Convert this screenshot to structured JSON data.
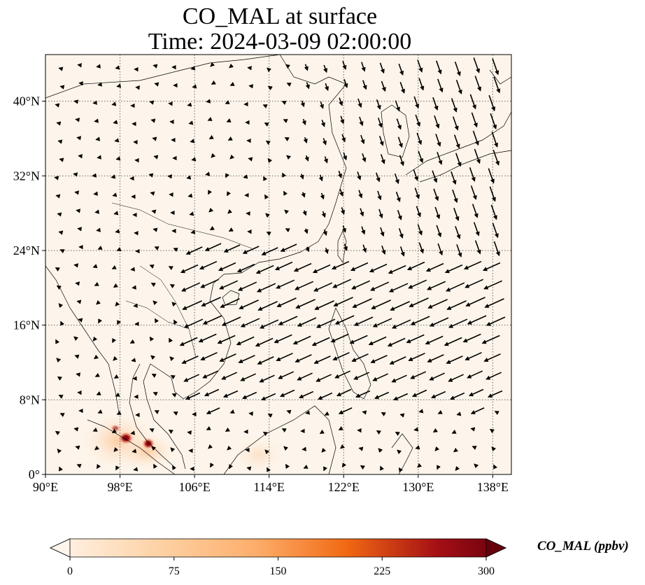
{
  "title": {
    "line1": "CO_MAL at surface",
    "line2": "Time: 2024-03-09 02:00:00"
  },
  "colorbar": {
    "label": "CO_MAL (ppbv)",
    "ticks": [
      "0",
      "75",
      "150",
      "225",
      "300"
    ],
    "colors": [
      "#fff5eb",
      "#fdd0a2",
      "#fdae6b",
      "#f16913",
      "#a50f15",
      "#67000d"
    ]
  },
  "map": {
    "extent": {
      "lon_min": 90,
      "lon_max": 140,
      "lat_min": 0,
      "lat_max": 45
    },
    "lon_ticks": [
      "90°E",
      "98°E",
      "106°E",
      "114°E",
      "122°E",
      "130°E",
      "138°E"
    ],
    "lat_ticks": [
      "0°",
      "8°N",
      "16°N",
      "24°N",
      "32°N",
      "40°N"
    ],
    "background": "#fdf5eb",
    "gridlines": true,
    "features": [
      "coastlines",
      "country borders",
      "wind vectors"
    ]
  }
}
